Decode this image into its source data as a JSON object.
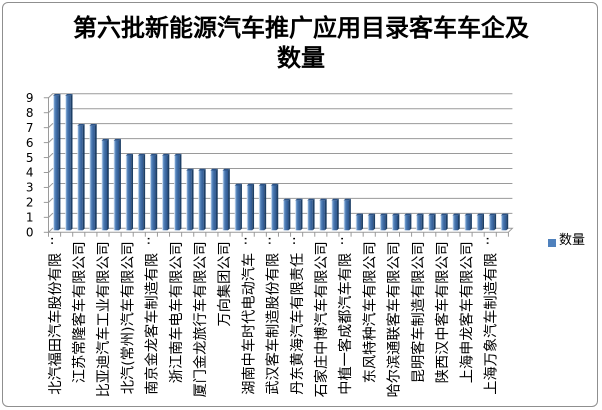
{
  "title": {
    "line1": "第六批新能源汽车推广应用目录客车车企及",
    "line2": "数量"
  },
  "legend": {
    "label": "数量",
    "swatch_color": "#4f81bd"
  },
  "colors": {
    "bar_light_edge": "#d7e5f2",
    "bar_mid": "#4a79b0",
    "bar_dark_edge": "#1d3f66",
    "bar_top_cap": "#2a5287",
    "axis_gray": "#9a9a9a",
    "text_black": "#000000",
    "background": "#ffffff",
    "border_gray": "#8f8f8f"
  },
  "chart_data": {
    "type": "bar",
    "title": "第六批新能源汽车推广应用目录客车车企及数量",
    "series": [
      {
        "name": "数量",
        "values": [
          9,
          9,
          7,
          7,
          6,
          6,
          5,
          5,
          5,
          5,
          5,
          4,
          4,
          4,
          4,
          3,
          3,
          3,
          3,
          2,
          2,
          2,
          2,
          2,
          2,
          1,
          1,
          1,
          1,
          1,
          1,
          1,
          1,
          1,
          1,
          1,
          1,
          1
        ]
      }
    ],
    "n_categories": 38,
    "x_tick_labels": [
      "北汽福田汽车股份有限..",
      "江苏常隆客车有限公司",
      "比亚迪汽车工业有限公司",
      "北汽(常州)汽车有限公司",
      "南京金龙客车制造有限..",
      "浙江南车电车有限公司",
      "厦门金龙旅行车有限公司",
      "万向集团公司",
      "湖南中车时代电动汽车..",
      "武汉客车制造股份有限..",
      "丹东黄海汽车有限责任..",
      "石家庄中博汽车有限公司",
      "中植一客成都汽车有限..",
      "东风特种汽车有限公司",
      "哈尔滨通联客车有限公司",
      "昆明客车制造有限公司",
      "陕西汉中客车有限公司",
      "上海申龙客车有限公司",
      "上海万象汽车制造有限.."
    ],
    "x_label_every": 2,
    "xlabel": "",
    "ylabel": "",
    "ylim": [
      0,
      9
    ],
    "y_ticks": [
      0,
      1,
      2,
      3,
      4,
      5,
      6,
      7,
      8,
      9
    ],
    "grid": true,
    "legend_position": "right",
    "bar_color": "#4f81bd",
    "style": "excel-3d-column"
  }
}
